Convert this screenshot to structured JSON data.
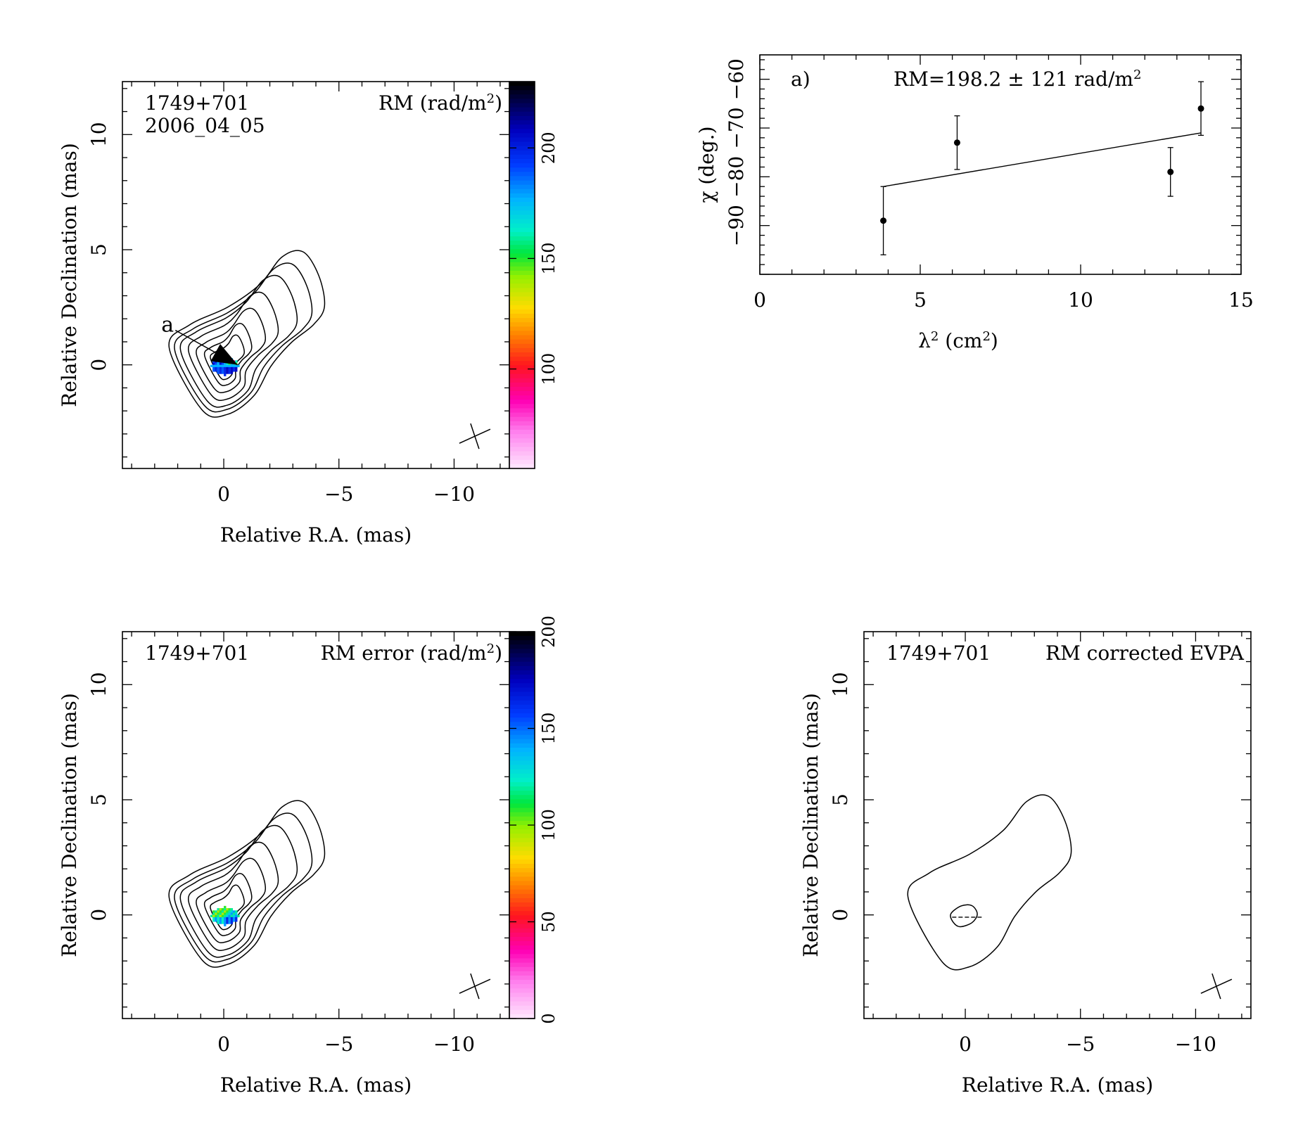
{
  "chart_data": [
    {
      "type": "heatmap",
      "panel": "rm-map",
      "source": "1749+701",
      "epoch": "2006_04_05",
      "map_label_main": "RM (rad/m",
      "map_label_exp": "2",
      "map_label_end": ")",
      "xlabel": "Relative R.A. (mas)",
      "ylabel": "Relative Declination (mas)",
      "xlim": [
        4.4,
        -12.4
      ],
      "ylim": [
        -4.5,
        12.3
      ],
      "x_ticks": [
        0,
        -5,
        -10
      ],
      "x_tick_labels": [
        "0",
        "−5",
        "−10"
      ],
      "y_ticks": [
        0,
        5,
        10
      ],
      "y_tick_labels": [
        "0",
        "5",
        "10"
      ],
      "colorbar": {
        "range": [
          55,
          230
        ],
        "ticks": [
          100,
          150,
          200
        ],
        "tick_labels": [
          "100",
          "150",
          "200"
        ]
      },
      "annotation": {
        "text": "a",
        "from": [
          2.1,
          1.5
        ],
        "to": [
          -0.6,
          0
        ]
      },
      "contours": "core-jet",
      "jet_angle_deg": 25
    },
    {
      "type": "scatter",
      "panel": "rm-fit",
      "panel_label": "a)",
      "fit_label_main": "RM=198.2 ± 121 rad/m",
      "fit_label_exp": "2",
      "xlabel_sym": "λ",
      "xlabel_exp": "2",
      "xlabel_rest": " (cm",
      "xlabel_exp2": "2",
      "xlabel_end": ")",
      "ylabel": "χ (deg.)",
      "xlim": [
        0,
        15
      ],
      "ylim": [
        -100,
        -55
      ],
      "x_ticks": [
        0,
        5,
        10,
        15
      ],
      "x_tick_labels": [
        "0",
        "5",
        "10",
        "15"
      ],
      "y_ticks": [
        -90,
        -80,
        -70,
        -60
      ],
      "y_tick_labels": [
        "−90",
        "−80",
        "−70",
        "−60"
      ],
      "points": [
        {
          "x": 3.85,
          "y": -89,
          "err": 7
        },
        {
          "x": 6.15,
          "y": -73,
          "err": 5.5
        },
        {
          "x": 12.8,
          "y": -79,
          "err": 5
        },
        {
          "x": 13.75,
          "y": -66,
          "err": 5.5
        }
      ],
      "fit_line": {
        "x": [
          3.85,
          13.75
        ],
        "y": [
          -82,
          -71
        ]
      }
    },
    {
      "type": "heatmap",
      "panel": "rm-error-map",
      "source": "1749+701",
      "map_label_main": "RM error (rad/m",
      "map_label_exp": "2",
      "map_label_end": ")",
      "xlabel": "Relative R.A. (mas)",
      "ylabel": "Relative Declination (mas)",
      "xlim": [
        4.4,
        -12.4
      ],
      "ylim": [
        -4.5,
        12.3
      ],
      "x_ticks": [
        0,
        -5,
        -10
      ],
      "x_tick_labels": [
        "0",
        "−5",
        "−10"
      ],
      "y_ticks": [
        0,
        5,
        10
      ],
      "y_tick_labels": [
        "0",
        "5",
        "10"
      ],
      "colorbar": {
        "range": [
          0,
          200
        ],
        "ticks": [
          0,
          50,
          100,
          150,
          200
        ],
        "tick_labels": [
          "0",
          "50",
          "100",
          "150",
          "200"
        ]
      },
      "contours": "core-jet",
      "jet_angle_deg": 25
    },
    {
      "type": "heatmap",
      "panel": "evpa-map",
      "source": "1749+701",
      "map_label_main": "RM corrected EVPA",
      "xlabel": "Relative R.A. (mas)",
      "ylabel": "Relative Declination (mas)",
      "xlim": [
        4.4,
        -12.4
      ],
      "ylim": [
        -4.5,
        12.3
      ],
      "x_ticks": [
        0,
        -5,
        -10
      ],
      "x_tick_labels": [
        "0",
        "−5",
        "−10"
      ],
      "y_ticks": [
        0,
        5,
        10
      ],
      "y_tick_labels": [
        "0",
        "5",
        "10"
      ],
      "contours": "outer-only",
      "evpa_vector": {
        "x": -0.1,
        "y": -0.1,
        "angle_deg": 0
      }
    }
  ]
}
